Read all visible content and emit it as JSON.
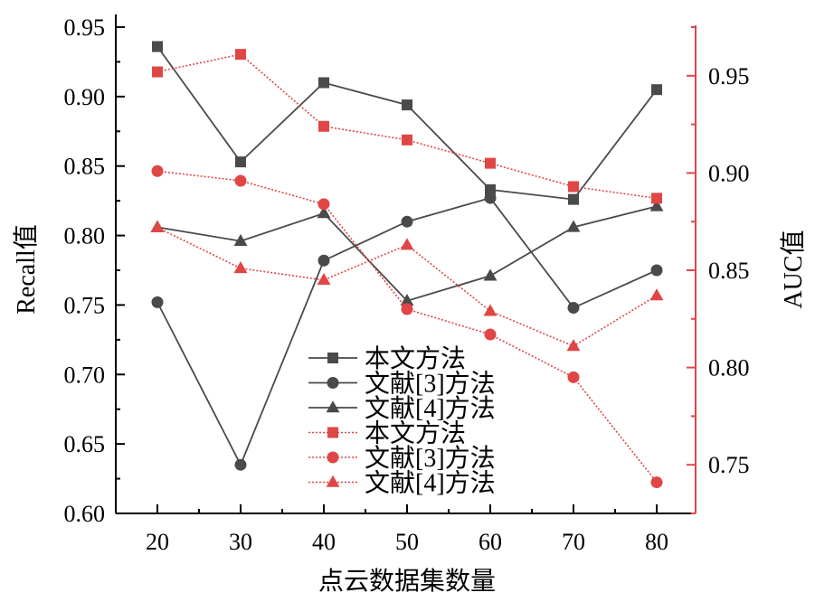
{
  "chart_data": {
    "type": "line",
    "title": "",
    "xlabel": "点云数据集数量",
    "ylabel_left": "Recall值",
    "ylabel_right": "AUC值",
    "categories": [
      20,
      30,
      40,
      50,
      60,
      70,
      80
    ],
    "x_ticks": [
      "20",
      "30",
      "40",
      "50",
      "60",
      "70",
      "80"
    ],
    "y_left": {
      "min": 0.6,
      "max": 0.95,
      "ticks": [
        "0.60",
        "0.65",
        "0.70",
        "0.75",
        "0.80",
        "0.85",
        "0.90",
        "0.95"
      ],
      "tick_values": [
        0.6,
        0.65,
        0.7,
        0.75,
        0.8,
        0.85,
        0.9,
        0.95
      ]
    },
    "y_right": {
      "min": 0.725,
      "max": 0.975,
      "ticks": [
        "0.75",
        "0.80",
        "0.85",
        "0.90",
        "0.95"
      ],
      "tick_values": [
        0.75,
        0.8,
        0.85,
        0.9,
        0.95
      ]
    },
    "grid": false,
    "legend_position": "bottom-center",
    "colors": {
      "recall": "#4a4a4a",
      "auc": "#e04646"
    },
    "series": [
      {
        "name": "本文方法",
        "axis": "left",
        "marker": "square",
        "style": "solid",
        "values": [
          0.936,
          0.853,
          0.91,
          0.894,
          0.833,
          0.826,
          0.905
        ]
      },
      {
        "name": "文献[3]方法",
        "axis": "left",
        "marker": "circle",
        "style": "solid",
        "values": [
          0.752,
          0.635,
          0.782,
          0.81,
          0.827,
          0.748,
          0.775
        ]
      },
      {
        "name": "文献[4]方法",
        "axis": "left",
        "marker": "triangle",
        "style": "solid",
        "values": [
          0.806,
          0.796,
          0.816,
          0.753,
          0.771,
          0.806,
          0.821
        ]
      },
      {
        "name": "本文方法",
        "axis": "right",
        "marker": "square",
        "style": "dotted",
        "values": [
          0.952,
          0.961,
          0.924,
          0.917,
          0.905,
          0.893,
          0.887
        ]
      },
      {
        "name": "文献[3]方法",
        "axis": "right",
        "marker": "circle",
        "style": "dotted",
        "values": [
          0.901,
          0.896,
          0.884,
          0.83,
          0.817,
          0.795,
          0.741
        ]
      },
      {
        "name": "文献[4]方法",
        "axis": "right",
        "marker": "triangle",
        "style": "dotted",
        "values": [
          0.872,
          0.851,
          0.845,
          0.863,
          0.829,
          0.811,
          0.837
        ]
      }
    ]
  }
}
